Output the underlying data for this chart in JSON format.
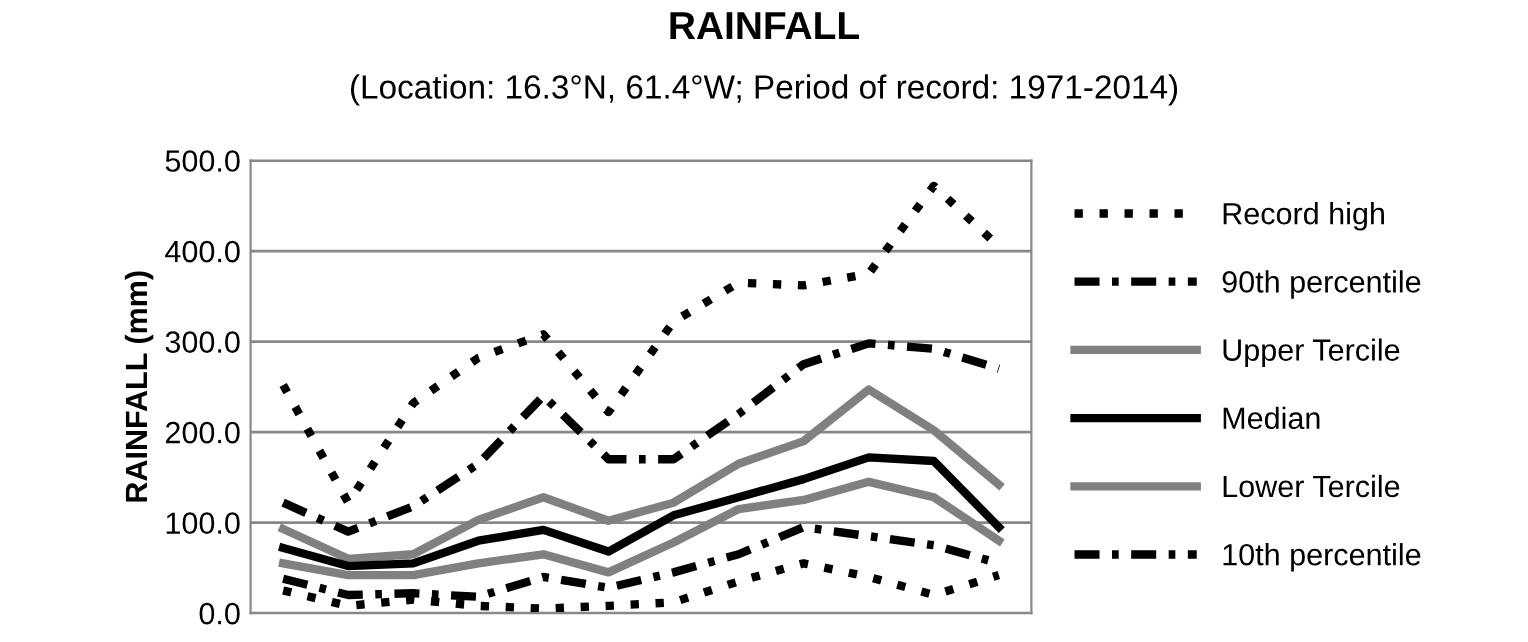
{
  "chart_data": {
    "type": "line",
    "title": "RAINFALL",
    "subtitle": "(Location: 16.3°N, 61.4°W; Period of record: 1971-2014)",
    "ylabel": "RAINFALL (mm)",
    "categories": [
      null,
      null,
      null,
      null,
      null,
      null,
      null,
      null,
      null,
      null,
      null,
      null
    ],
    "series": [
      {
        "name": "Record high",
        "color": "#000000",
        "line_style": "dotted",
        "values": [
          252,
          122,
          232,
          282,
          308,
          222,
          322,
          365,
          362,
          375,
          472,
          405
        ]
      },
      {
        "name": "90th percentile",
        "color": "#000000",
        "line_style": "dashdot",
        "values": [
          122,
          90,
          118,
          165,
          240,
          170,
          170,
          220,
          275,
          298,
          292,
          270
        ]
      },
      {
        "name": "Upper Tercile",
        "color": "#808080",
        "line_style": "solid",
        "values": [
          93,
          60,
          65,
          103,
          128,
          102,
          122,
          165,
          190,
          247,
          202,
          142
        ]
      },
      {
        "name": "Median",
        "color": "#000000",
        "line_style": "solid",
        "values": [
          72,
          52,
          55,
          80,
          92,
          68,
          108,
          128,
          148,
          172,
          168,
          95
        ]
      },
      {
        "name": "Lower Tercile",
        "color": "#808080",
        "line_style": "solid",
        "values": [
          55,
          42,
          42,
          55,
          65,
          45,
          78,
          115,
          125,
          145,
          128,
          80
        ]
      },
      {
        "name": "10th percentile",
        "color": "#000000",
        "line_style": "dashdot",
        "values": [
          38,
          20,
          22,
          18,
          40,
          28,
          45,
          65,
          95,
          85,
          75,
          55
        ]
      },
      {
        "color": "#000000",
        "line_style": "dotted",
        "values": [
          25,
          8,
          15,
          8,
          5,
          8,
          12,
          35,
          55,
          40,
          20,
          42
        ]
      }
    ],
    "ylim": [
      0,
      500
    ],
    "yticks": [
      {
        "value": 0,
        "label": "0.0"
      },
      {
        "value": 100,
        "label": "100.0"
      },
      {
        "value": 200,
        "label": "200.0"
      },
      {
        "value": 300,
        "label": "300.0"
      },
      {
        "value": 400,
        "label": "400.0"
      },
      {
        "value": 500,
        "label": "500.0"
      }
    ],
    "grid": "y",
    "legend": "right",
    "tick_labels": "y"
  }
}
